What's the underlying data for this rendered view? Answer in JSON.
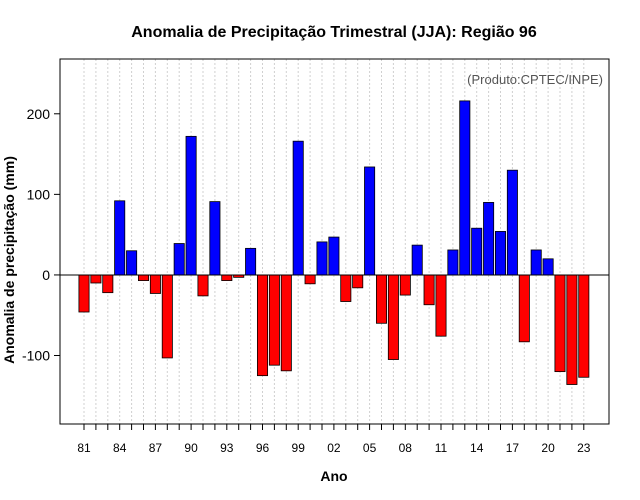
{
  "chart_data": {
    "type": "bar",
    "title": "Anomalia de Precipitação Trimestral (JJA): Região 96",
    "annotation": "(Produto:CPTEC/INPE)",
    "xlabel": "Ano",
    "ylabel": "Anomalia de precipitação (mm)",
    "ylim": [
      -185,
      268
    ],
    "yticks": [
      -100,
      0,
      100,
      200
    ],
    "yticklabels": [
      "-100",
      "0",
      "100",
      "200"
    ],
    "xticklabels": [
      "81",
      "84",
      "87",
      "90",
      "93",
      "96",
      "99",
      "02",
      "05",
      "08",
      "11",
      "14",
      "17",
      "20",
      "23"
    ],
    "xtick_years": [
      1981,
      1984,
      1987,
      1990,
      1993,
      1996,
      1999,
      2002,
      2005,
      2008,
      2011,
      2014,
      2017,
      2020,
      2023
    ],
    "grid": true,
    "colors": {
      "positive": "#0000ff",
      "negative": "#ff0000",
      "zero_line": "#000000",
      "grid": "#d0d0d0"
    },
    "years": [
      1981,
      1982,
      1983,
      1984,
      1985,
      1986,
      1987,
      1988,
      1989,
      1990,
      1991,
      1992,
      1993,
      1994,
      1995,
      1996,
      1997,
      1998,
      1999,
      2000,
      2001,
      2002,
      2003,
      2004,
      2005,
      2006,
      2007,
      2008,
      2009,
      2010,
      2011,
      2012,
      2013,
      2014,
      2015,
      2016,
      2017,
      2018,
      2019,
      2020,
      2021,
      2022,
      2023
    ],
    "values": [
      -46,
      -10,
      -22,
      92,
      30,
      -7,
      -23,
      -103,
      39,
      172,
      -26,
      91,
      -7,
      -3,
      33,
      -125,
      -112,
      -119,
      166,
      -11,
      41,
      47,
      -33,
      -16,
      134,
      -60,
      -105,
      -25,
      37,
      -37,
      -76,
      31,
      216,
      58,
      90,
      54,
      130,
      -83,
      31,
      20,
      -120,
      -136,
      -127
    ]
  }
}
